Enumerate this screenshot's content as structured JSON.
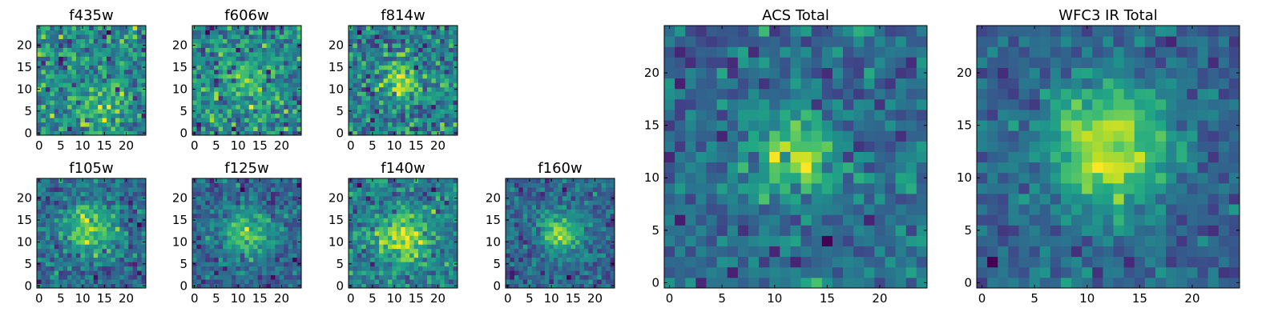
{
  "chart_data": [
    {
      "type": "heatmap",
      "title": "f435w",
      "colormap": "viridis",
      "x_ticks": [
        "0",
        "5",
        "10",
        "15",
        "20"
      ],
      "y_ticks": [
        "0",
        "5",
        "10",
        "15",
        "20"
      ],
      "xlim": [
        -0.5,
        24.5
      ],
      "ylim": [
        -0.5,
        24.5
      ],
      "grid": false,
      "grid_size": [
        25,
        25
      ],
      "values": "25x25 noise, faint bright blob near (14,6)",
      "seed": 11,
      "blob": {
        "cx": 14,
        "cy": 6,
        "sigma": 4.0,
        "amp": 0.25
      },
      "noise": 0.9,
      "min_floor": 0.0
    },
    {
      "type": "heatmap",
      "title": "f606w",
      "colormap": "viridis",
      "x_ticks": [
        "0",
        "5",
        "10",
        "15",
        "20"
      ],
      "y_ticks": [
        "0",
        "5",
        "10",
        "15",
        "20"
      ],
      "xlim": [
        -0.5,
        24.5
      ],
      "ylim": [
        -0.5,
        24.5
      ],
      "grid": false,
      "grid_size": [
        25,
        25
      ],
      "values": "25x25 noise, faint bright blob near (12,12)",
      "seed": 23,
      "blob": {
        "cx": 12,
        "cy": 12,
        "sigma": 3.5,
        "amp": 0.3
      },
      "noise": 0.85
    },
    {
      "type": "heatmap",
      "title": "f814w",
      "colormap": "viridis",
      "x_ticks": [
        "0",
        "5",
        "10",
        "15",
        "20"
      ],
      "y_ticks": [
        "0",
        "5",
        "10",
        "15",
        "20"
      ],
      "xlim": [
        -0.5,
        24.5
      ],
      "ylim": [
        -0.5,
        24.5
      ],
      "grid": false,
      "grid_size": [
        25,
        25
      ],
      "values": "25x25 noise, bright blob near (12,12)",
      "seed": 37,
      "blob": {
        "cx": 12,
        "cy": 12,
        "sigma": 3.0,
        "amp": 0.45
      },
      "noise": 0.8
    },
    {
      "type": "heatmap",
      "title": "f105w",
      "colormap": "viridis",
      "x_ticks": [
        "0",
        "5",
        "10",
        "15",
        "20"
      ],
      "y_ticks": [
        "0",
        "5",
        "10",
        "15",
        "20"
      ],
      "xlim": [
        -0.5,
        24.5
      ],
      "ylim": [
        -0.5,
        24.5
      ],
      "grid": false,
      "grid_size": [
        25,
        25
      ],
      "values": "25x25 noise, bright blob near (12,13)",
      "seed": 41,
      "blob": {
        "cx": 12,
        "cy": 13,
        "sigma": 4.0,
        "amp": 0.55
      },
      "noise": 0.6
    },
    {
      "type": "heatmap",
      "title": "f125w",
      "colormap": "viridis",
      "x_ticks": [
        "0",
        "5",
        "10",
        "15",
        "20"
      ],
      "y_ticks": [
        "0",
        "5",
        "10",
        "15",
        "20"
      ],
      "xlim": [
        -0.5,
        24.5
      ],
      "ylim": [
        -0.5,
        24.5
      ],
      "grid": false,
      "grid_size": [
        25,
        25
      ],
      "values": "25x25 noise, bright blob near (12,12)",
      "seed": 53,
      "blob": {
        "cx": 12,
        "cy": 12,
        "sigma": 4.0,
        "amp": 0.55
      },
      "noise": 0.6
    },
    {
      "type": "heatmap",
      "title": "f140w",
      "colormap": "viridis",
      "x_ticks": [
        "0",
        "5",
        "10",
        "15",
        "20"
      ],
      "y_ticks": [
        "0",
        "5",
        "10",
        "15",
        "20"
      ],
      "xlim": [
        -0.5,
        24.5
      ],
      "ylim": [
        -0.5,
        24.5
      ],
      "grid": false,
      "grid_size": [
        25,
        25
      ],
      "values": "25x25 noise, bright blob near (12,11)",
      "seed": 67,
      "blob": {
        "cx": 12,
        "cy": 11,
        "sigma": 3.8,
        "amp": 0.55
      },
      "noise": 0.6
    },
    {
      "type": "heatmap",
      "title": "f160w",
      "colormap": "viridis",
      "x_ticks": [
        "0",
        "5",
        "10",
        "15",
        "20"
      ],
      "y_ticks": [
        "0",
        "5",
        "10",
        "15",
        "20"
      ],
      "xlim": [
        -0.5,
        24.5
      ],
      "ylim": [
        -0.5,
        24.5
      ],
      "grid": false,
      "grid_size": [
        25,
        25
      ],
      "values": "25x25 noise, bright compact blob near (12,12)",
      "seed": 79,
      "blob": {
        "cx": 12,
        "cy": 12,
        "sigma": 3.0,
        "amp": 0.7
      },
      "noise": 0.55
    },
    {
      "type": "heatmap",
      "title": "ACS Total",
      "colormap": "viridis",
      "x_ticks": [
        "0",
        "5",
        "10",
        "15",
        "20"
      ],
      "y_ticks": [
        "0",
        "5",
        "10",
        "15",
        "20"
      ],
      "xlim": [
        -0.5,
        24.5
      ],
      "ylim": [
        -0.5,
        24.5
      ],
      "grid": false,
      "grid_size": [
        25,
        25
      ],
      "values": "25x25 noise, bright blob near (12,12)",
      "seed": 97,
      "blob": {
        "cx": 12,
        "cy": 12,
        "sigma": 3.0,
        "amp": 0.5
      },
      "noise": 0.55
    },
    {
      "type": "heatmap",
      "title": "WFC3 IR Total",
      "colormap": "viridis",
      "x_ticks": [
        "0",
        "5",
        "10",
        "15",
        "20"
      ],
      "y_ticks": [
        "0",
        "5",
        "10",
        "15",
        "20"
      ],
      "xlim": [
        -0.5,
        24.5
      ],
      "ylim": [
        -0.5,
        24.5
      ],
      "grid": false,
      "grid_size": [
        25,
        25
      ],
      "values": "25x25 smooth field, bright blob near (12,13)",
      "seed": 113,
      "blob": {
        "cx": 12,
        "cy": 13,
        "sigma": 4.0,
        "amp": 0.8
      },
      "noise": 0.45
    }
  ]
}
